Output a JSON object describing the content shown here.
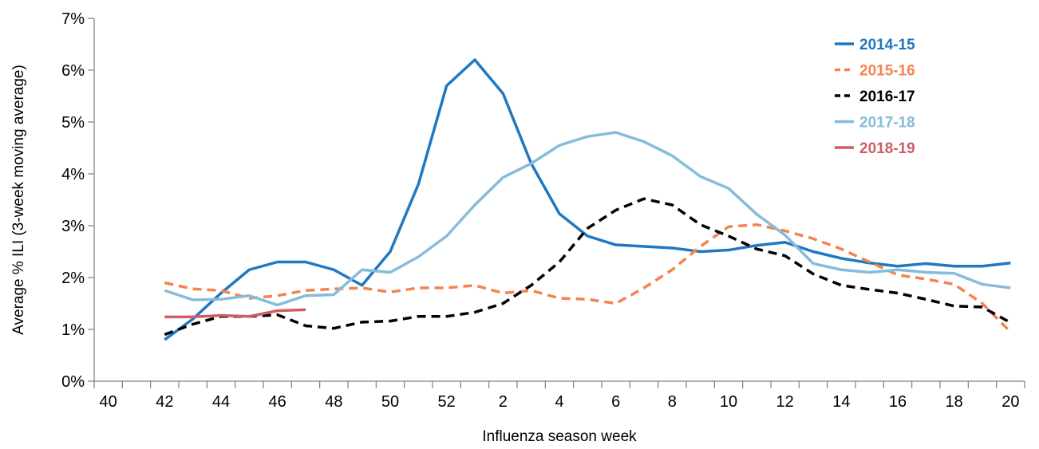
{
  "chart_data": {
    "type": "line",
    "title": "",
    "xlabel": "Influenza season week",
    "ylabel": "Average % ILI (3-week moving average)",
    "ylim": [
      0,
      7
    ],
    "y_ticks": [
      "0%",
      "1%",
      "2%",
      "3%",
      "4%",
      "5%",
      "6%",
      "7%"
    ],
    "x_weeks": [
      40,
      41,
      42,
      43,
      44,
      45,
      46,
      47,
      48,
      49,
      50,
      51,
      52,
      1,
      2,
      3,
      4,
      5,
      6,
      7,
      8,
      9,
      10,
      11,
      12,
      13,
      14,
      15,
      16,
      17,
      18,
      19,
      20
    ],
    "x_tick_labels": [
      "40",
      "",
      "42",
      "",
      "44",
      "",
      "46",
      "",
      "48",
      "",
      "50",
      "",
      "52",
      "",
      "2",
      "",
      "4",
      "",
      "6",
      "",
      "8",
      "",
      "10",
      "",
      "12",
      "",
      "14",
      "",
      "16",
      "",
      "18",
      "",
      "20"
    ],
    "grid": false,
    "legend_position": "top-right",
    "series": [
      {
        "name": "2014-15",
        "color": "#1F78C1",
        "dash": "solid",
        "values": [
          null,
          null,
          0.8,
          1.2,
          1.7,
          2.15,
          2.3,
          2.3,
          2.15,
          1.85,
          2.5,
          3.8,
          5.7,
          6.2,
          5.55,
          4.2,
          3.23,
          2.8,
          2.63,
          2.6,
          2.57,
          2.5,
          2.53,
          2.62,
          2.68,
          2.5,
          2.37,
          2.28,
          2.22,
          2.27,
          2.22,
          2.22,
          2.28
        ]
      },
      {
        "name": "2015-16",
        "color": "#F4834F",
        "dash": "dashed",
        "values": [
          null,
          null,
          1.9,
          1.78,
          1.75,
          1.6,
          1.65,
          1.75,
          1.78,
          1.8,
          1.72,
          1.8,
          1.8,
          1.85,
          1.7,
          1.75,
          1.6,
          1.58,
          1.5,
          1.8,
          2.15,
          2.6,
          2.98,
          3.02,
          2.9,
          2.75,
          2.55,
          2.3,
          2.05,
          1.97,
          1.87,
          1.5,
          0.95
        ]
      },
      {
        "name": "2016-17",
        "color": "#000000",
        "dash": "dashed",
        "values": [
          null,
          null,
          0.9,
          1.1,
          1.25,
          1.25,
          1.28,
          1.07,
          1.02,
          1.14,
          1.16,
          1.25,
          1.25,
          1.33,
          1.5,
          1.85,
          2.3,
          2.95,
          3.3,
          3.52,
          3.4,
          3.02,
          2.8,
          2.55,
          2.42,
          2.07,
          1.85,
          1.77,
          1.7,
          1.58,
          1.45,
          1.43,
          1.13
        ]
      },
      {
        "name": "2017-18",
        "color": "#86BCDB",
        "dash": "solid",
        "values": [
          null,
          null,
          1.75,
          1.57,
          1.58,
          1.65,
          1.47,
          1.65,
          1.67,
          2.15,
          2.1,
          2.4,
          2.8,
          3.4,
          3.93,
          4.2,
          4.55,
          4.72,
          4.8,
          4.62,
          4.35,
          3.95,
          3.72,
          3.22,
          2.82,
          2.27,
          2.15,
          2.1,
          2.15,
          2.1,
          2.08,
          1.87,
          1.8
        ]
      },
      {
        "name": "2018-19",
        "color": "#D35B63",
        "dash": "solid",
        "values": [
          null,
          null,
          1.24,
          1.24,
          1.27,
          1.25,
          1.36,
          1.38,
          null,
          null,
          null,
          null,
          null,
          null,
          null,
          null,
          null,
          null,
          null,
          null,
          null,
          null,
          null,
          null,
          null,
          null,
          null,
          null,
          null,
          null,
          null,
          null,
          null
        ]
      }
    ]
  }
}
